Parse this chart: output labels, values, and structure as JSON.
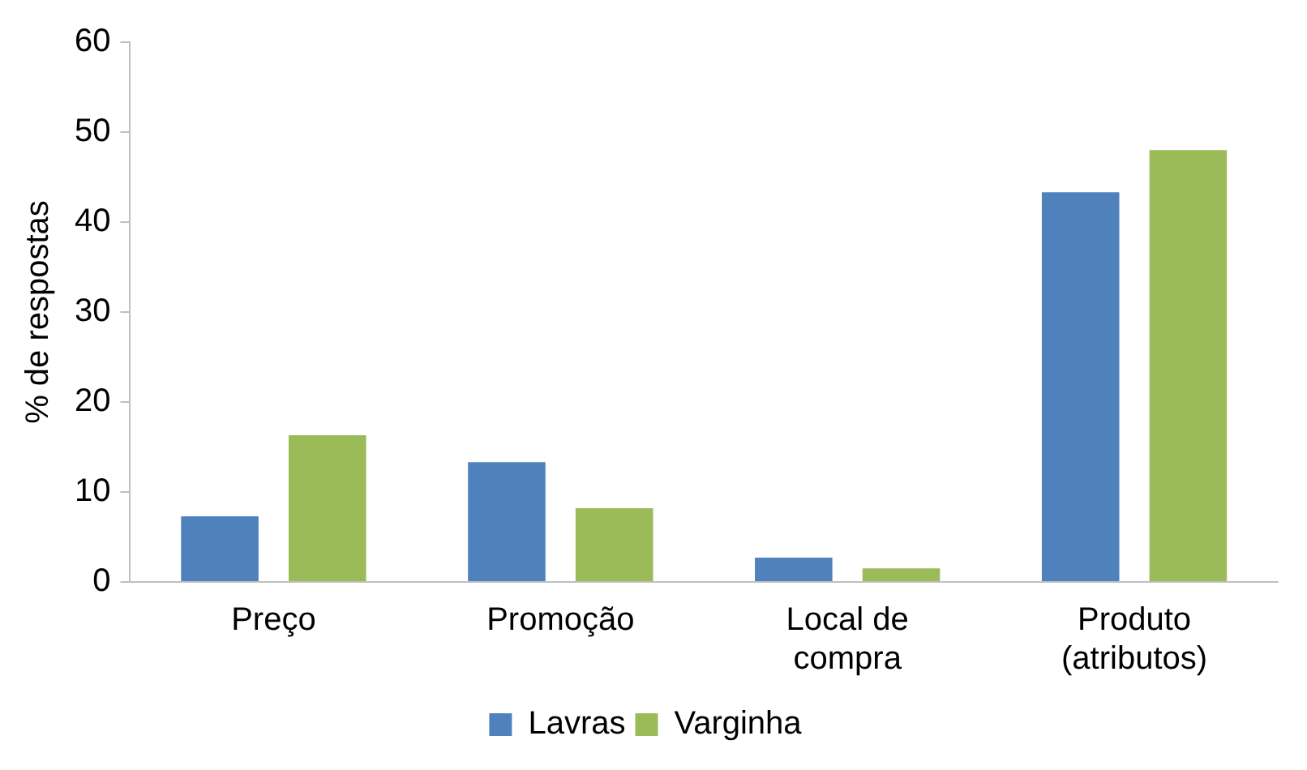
{
  "chart_data": {
    "type": "bar",
    "ylabel": "% de respostas",
    "categories": [
      "Preço",
      "Promoção",
      "Local de compra",
      "Produto (atributos)"
    ],
    "series": [
      {
        "name": "Lavras",
        "color": "#4f81bd",
        "values": [
          7.3,
          13.3,
          2.7,
          43.3
        ]
      },
      {
        "name": "Varginha",
        "color": "#9bbb59",
        "values": [
          16.3,
          8.2,
          1.5,
          48
        ]
      }
    ],
    "ylim": [
      0,
      60
    ],
    "yticks": [
      0,
      10,
      20,
      30,
      40,
      50,
      60
    ],
    "grid": false,
    "legend": "bottom"
  }
}
